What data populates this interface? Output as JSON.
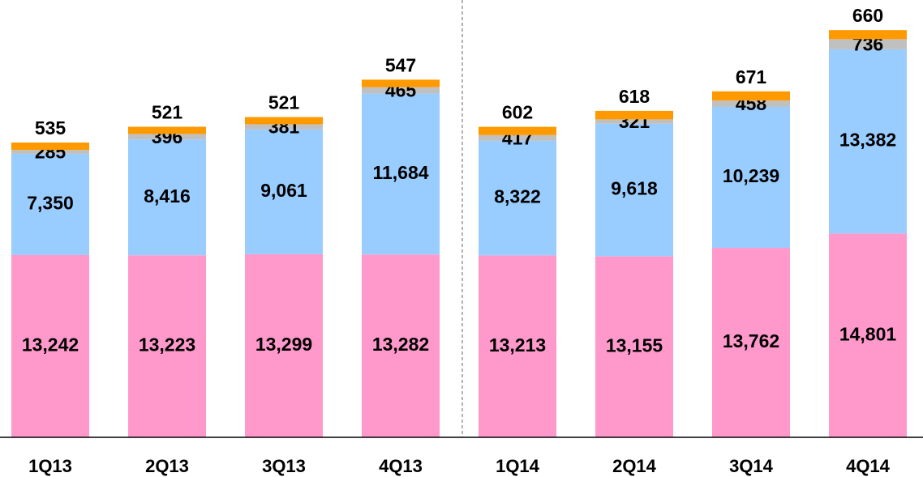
{
  "chart_data": {
    "type": "stacked_bar",
    "categories": [
      "1Q13",
      "2Q13",
      "3Q13",
      "4Q13",
      "1Q14",
      "2Q14",
      "3Q14",
      "4Q14"
    ],
    "series": [
      {
        "color": "#ff99cc",
        "values": [
          13242,
          13223,
          13299,
          13282,
          13213,
          13155,
          13762,
          14801
        ]
      },
      {
        "color": "#99ccff",
        "values": [
          7350,
          8416,
          9061,
          11684,
          8322,
          9618,
          10239,
          13382
        ]
      },
      {
        "color": "#c0c0c0",
        "values": [
          285,
          396,
          381,
          465,
          417,
          321,
          458,
          736
        ]
      },
      {
        "color": "#ff9900",
        "values": [
          535,
          521,
          521,
          547,
          602,
          618,
          671,
          660
        ]
      }
    ],
    "value_labels": [
      [
        "13,242",
        "13,223",
        "13,299",
        "13,282",
        "13,213",
        "13,155",
        "13,762",
        "14,801"
      ],
      [
        "7,350",
        "8,416",
        "9,061",
        "11,684",
        "8,322",
        "9,618",
        "10,239",
        "13,382"
      ],
      [
        "285",
        "396",
        "381",
        "465",
        "417",
        "321",
        "458",
        "736"
      ],
      [
        "535",
        "521",
        "521",
        "547",
        "602",
        "618",
        "671",
        "660"
      ]
    ],
    "ylim": [
      0,
      30000
    ]
  }
}
